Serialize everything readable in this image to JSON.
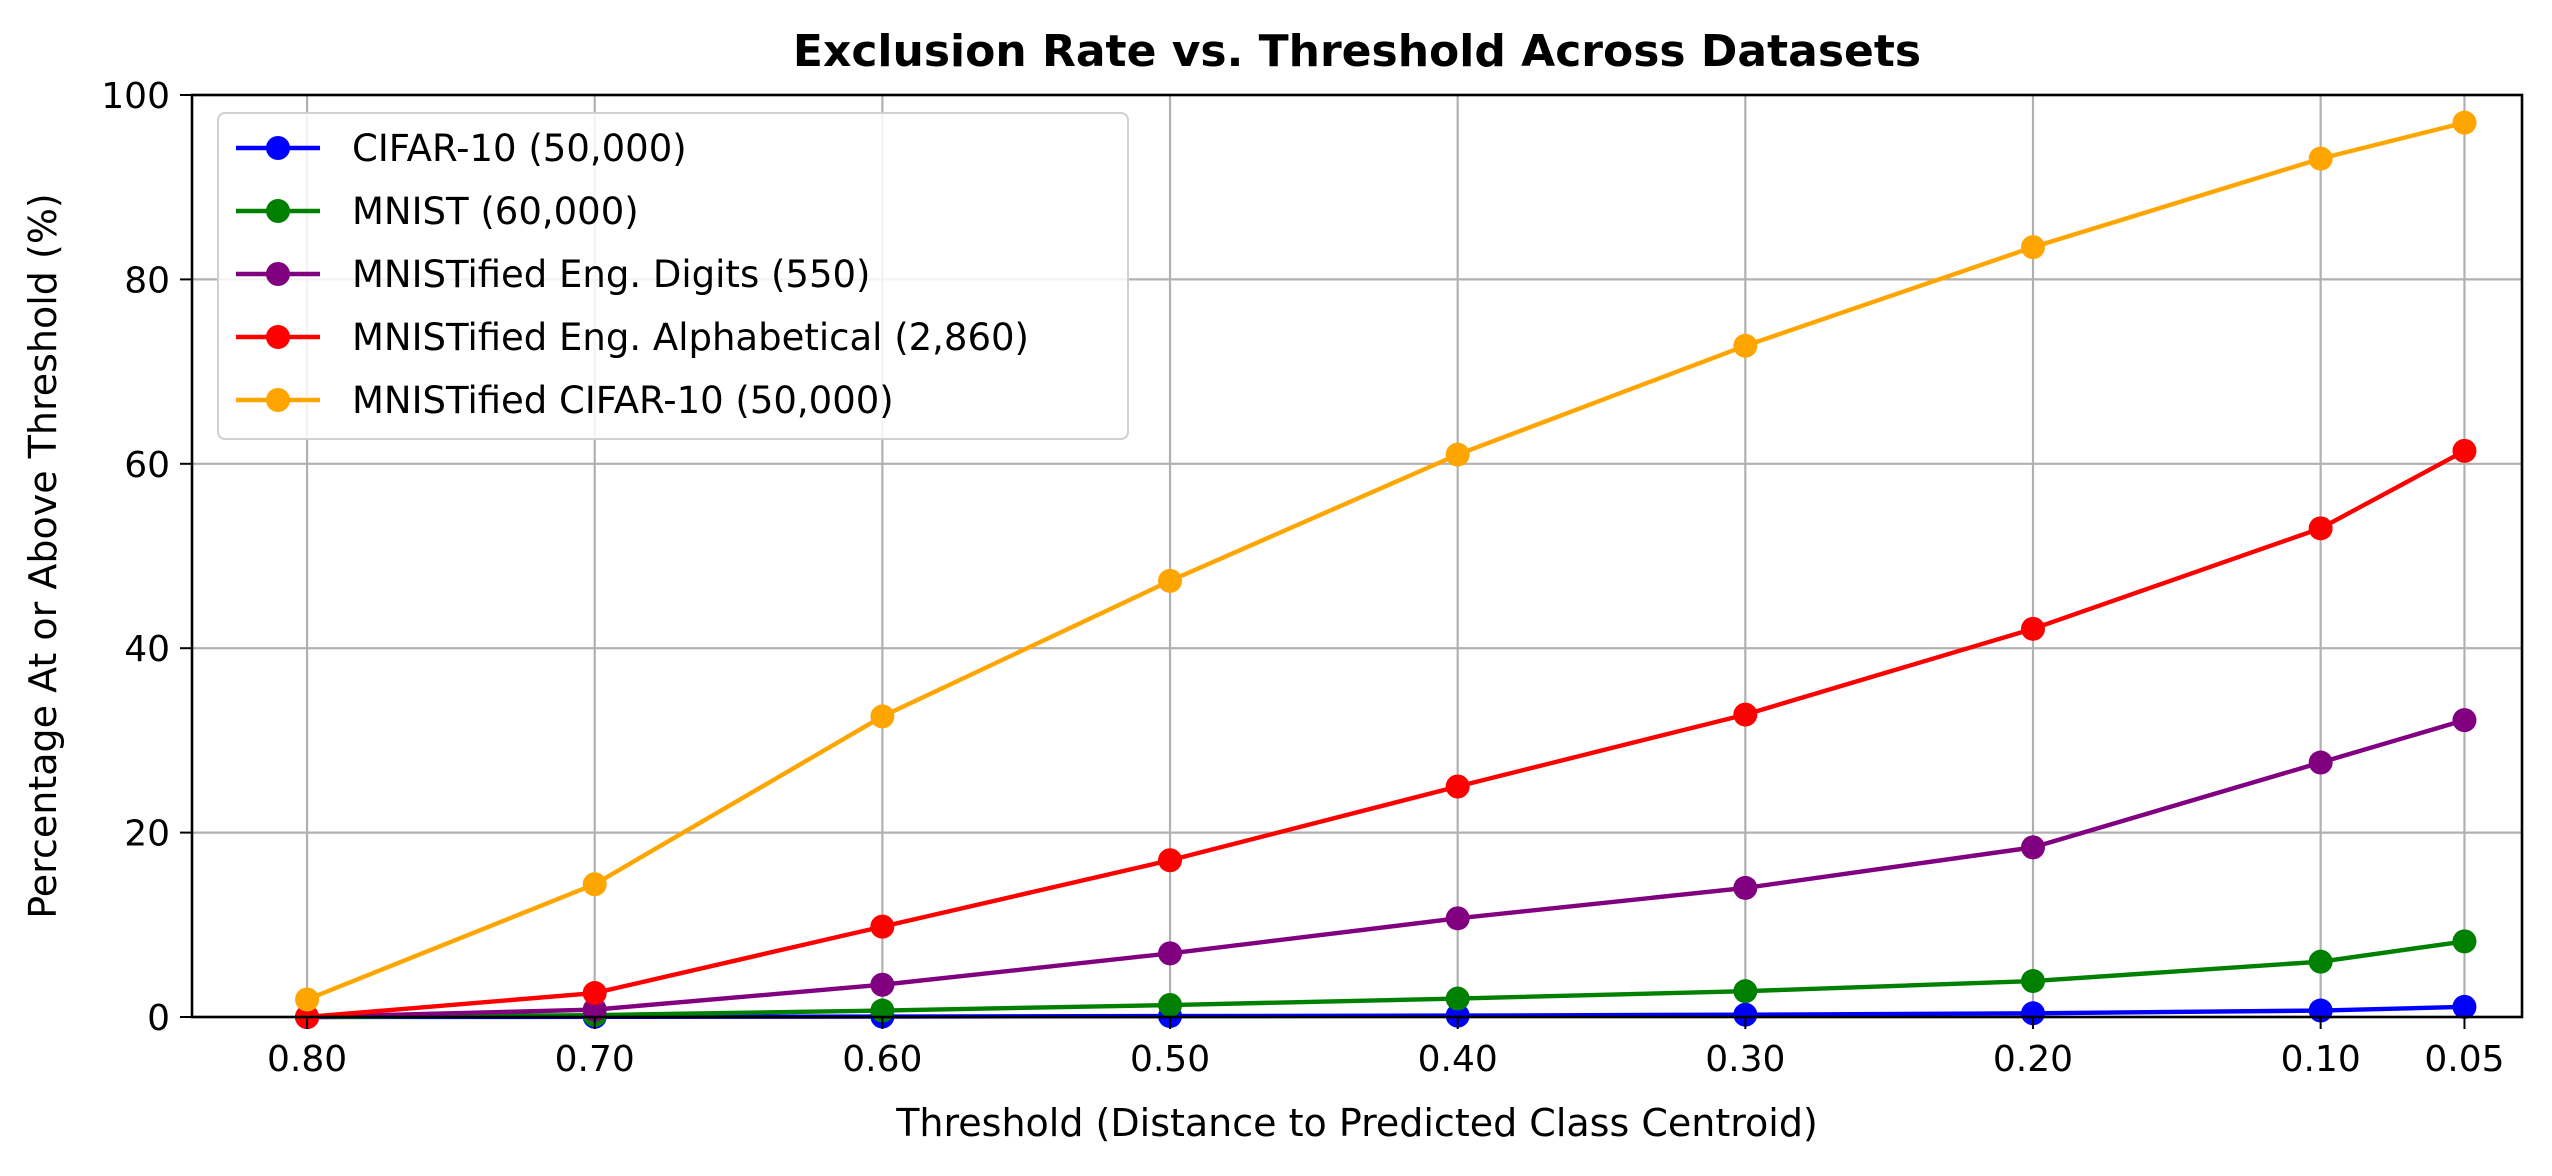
{
  "chart_data": {
    "type": "line",
    "title": "Exclusion Rate vs. Threshold Across Datasets",
    "xlabel": "Threshold (Distance to Predicted Class Centroid)",
    "ylabel": "Percentage At or Above Threshold (%)",
    "x": [
      0.8,
      0.7,
      0.6,
      0.5,
      0.4,
      0.3,
      0.2,
      0.1,
      0.05
    ],
    "x_tick_labels": [
      "0.80",
      "0.70",
      "0.60",
      "0.50",
      "0.40",
      "0.30",
      "0.20",
      "0.10",
      "0.05"
    ],
    "x_axis_reversed": true,
    "xlim": [
      0.84,
      0.03
    ],
    "ylim": [
      0,
      100
    ],
    "y_ticks": [
      0,
      20,
      40,
      60,
      80,
      100
    ],
    "grid": true,
    "legend_position": "top-left",
    "series": [
      {
        "name": "CIFAR-10 (50,000)",
        "color": "#0000ff",
        "values": [
          0.0,
          0.02,
          0.05,
          0.1,
          0.15,
          0.25,
          0.4,
          0.7,
          1.1
        ]
      },
      {
        "name": "MNIST (60,000)",
        "color": "#008000",
        "values": [
          0.0,
          0.2,
          0.7,
          1.3,
          2.0,
          2.8,
          3.9,
          6.0,
          8.2
        ]
      },
      {
        "name": "MNISTified Eng. Digits (550)",
        "color": "#800080",
        "values": [
          0.0,
          0.8,
          3.5,
          6.9,
          10.7,
          14.0,
          18.4,
          27.6,
          32.2
        ]
      },
      {
        "name": "MNISTified Eng. Alphabetical (2,860)",
        "color": "#ff0000",
        "values": [
          0.0,
          2.6,
          9.8,
          17.0,
          25.0,
          32.8,
          42.1,
          53.0,
          61.4
        ]
      },
      {
        "name": "MNISTified CIFAR-10 (50,000)",
        "color": "#ffa500",
        "values": [
          1.9,
          14.4,
          32.6,
          47.3,
          61.0,
          72.8,
          83.5,
          93.1,
          97.0
        ]
      }
    ]
  }
}
